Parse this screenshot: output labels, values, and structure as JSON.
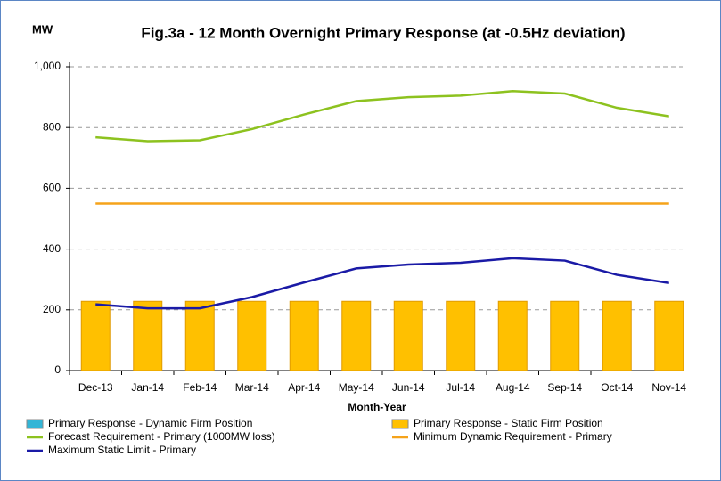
{
  "chart_data": {
    "type": "bar",
    "title": "Fig.3a - 12 Month Overnight Primary Response (at -0.5Hz deviation)",
    "y_label": "MW",
    "x_label": "Month-Year",
    "categories": [
      "Dec-13",
      "Jan-14",
      "Feb-14",
      "Mar-14",
      "Apr-14",
      "May-14",
      "Jun-14",
      "Jul-14",
      "Aug-14",
      "Sep-14",
      "Oct-14",
      "Nov-14"
    ],
    "series": [
      {
        "name": "Primary Response - Dynamic Firm Position",
        "type": "bar",
        "color": "#33b5d6",
        "values": [
          0,
          0,
          0,
          0,
          0,
          0,
          0,
          0,
          0,
          0,
          0,
          0
        ]
      },
      {
        "name": "Primary Response - Static Firm Position",
        "type": "bar",
        "color": "#ffc000",
        "values": [
          228,
          228,
          228,
          228,
          228,
          228,
          228,
          228,
          228,
          228,
          228,
          228
        ]
      },
      {
        "name": "Forecast Requirement - Primary (1000MW loss)",
        "type": "line",
        "color": "#8dc21f",
        "values": [
          768,
          755,
          758,
          795,
          843,
          887,
          900,
          905,
          920,
          912,
          865,
          837
        ]
      },
      {
        "name": "Minimum Dynamic Requirement - Primary",
        "type": "line",
        "color": "#f5a31a",
        "values": [
          550,
          550,
          550,
          550,
          550,
          550,
          550,
          550,
          550,
          550,
          550,
          550
        ]
      },
      {
        "name": "Maximum Static Limit - Primary",
        "type": "line",
        "color": "#1a1aa6",
        "values": [
          218,
          205,
          205,
          242,
          290,
          336,
          349,
          355,
          370,
          362,
          315,
          288
        ]
      }
    ],
    "ylim": [
      0,
      1000
    ],
    "yticks": [
      0,
      200,
      400,
      600,
      800,
      {
        "value": 1000,
        "label": "1,000"
      }
    ],
    "grid": true
  }
}
